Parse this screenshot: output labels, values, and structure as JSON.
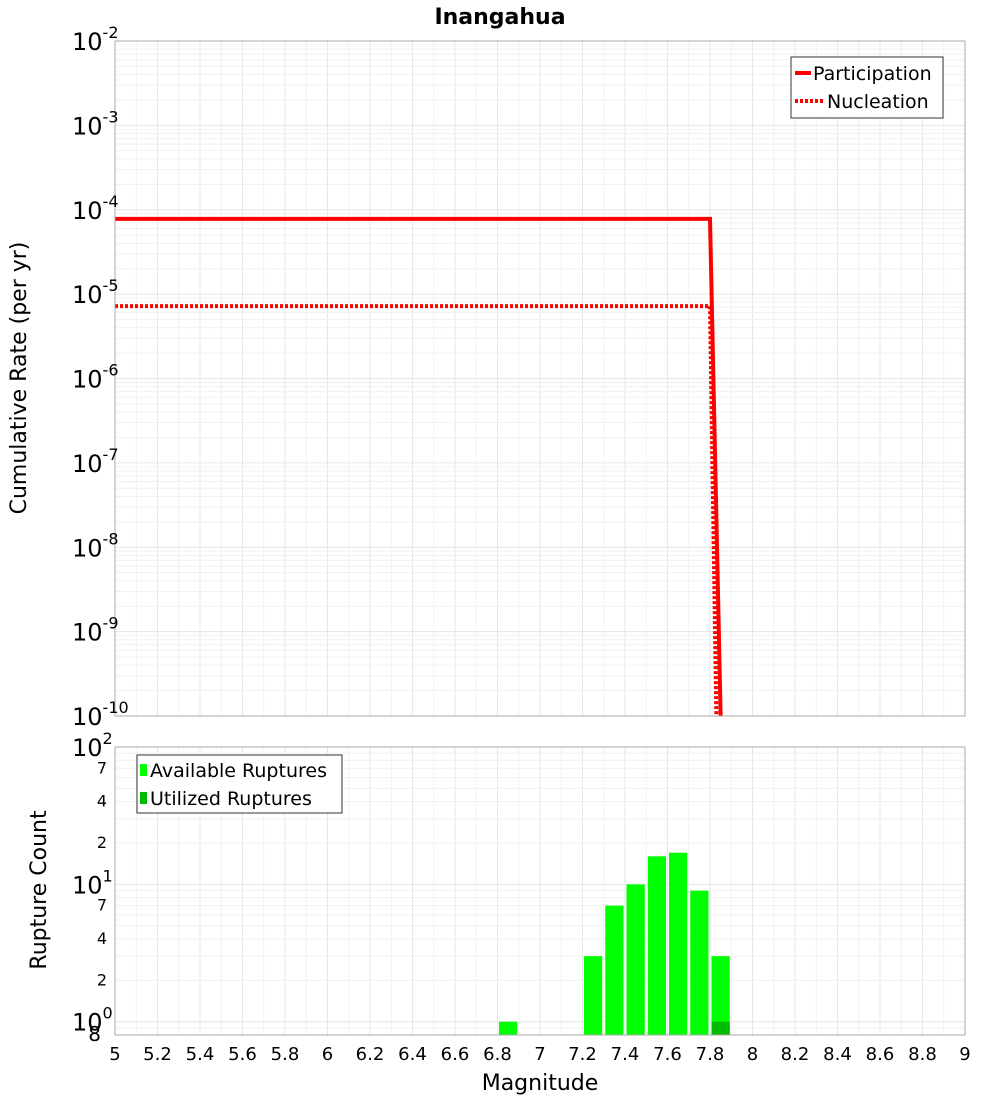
{
  "title": "Inangahua",
  "chart_data": [
    {
      "type": "line",
      "title": "Inangahua",
      "xlabel": "",
      "ylabel": "Cumulative Rate (per yr)",
      "xlim": [
        5,
        9
      ],
      "ylim": [
        1e-10,
        0.01
      ],
      "yscale": "log",
      "y_tick_exponents": [
        "-2",
        "-3",
        "-4",
        "-5",
        "-6",
        "-7",
        "-8",
        "-9",
        "-10"
      ],
      "grid": true,
      "legend_position": "top-right",
      "series": [
        {
          "name": "Participation",
          "style": "solid",
          "color": "#ff0000",
          "x": [
            5.0,
            7.8,
            7.85
          ],
          "y": [
            7.8e-05,
            7.8e-05,
            1e-10
          ]
        },
        {
          "name": "Nucleation",
          "style": "dotted",
          "color": "#ff0000",
          "x": [
            5.0,
            7.8,
            7.83
          ],
          "y": [
            7.2e-06,
            7.2e-06,
            1e-10
          ]
        }
      ]
    },
    {
      "type": "bar",
      "xlabel": "Magnitude",
      "ylabel": "Rupture Count",
      "xlim": [
        5,
        9
      ],
      "ylim": [
        0.8,
        100
      ],
      "yscale": "log",
      "y_major_labels": [
        {
          "value": 100,
          "base": "10",
          "exp": "2"
        },
        {
          "value": 10,
          "base": "10",
          "exp": "1"
        },
        {
          "value": 1,
          "base": "10",
          "exp": "0"
        }
      ],
      "y_minor_labels": [
        {
          "value": 70,
          "label": "7"
        },
        {
          "value": 40,
          "label": "4"
        },
        {
          "value": 20,
          "label": "2"
        },
        {
          "value": 7,
          "label": "7"
        },
        {
          "value": 4,
          "label": "4"
        },
        {
          "value": 2,
          "label": "2"
        },
        {
          "value": 0.8,
          "label": "8"
        }
      ],
      "x_ticks": [
        "5",
        "5.2",
        "5.4",
        "5.6",
        "5.8",
        "6",
        "6.2",
        "6.4",
        "6.6",
        "6.8",
        "7",
        "7.2",
        "7.4",
        "7.6",
        "7.8",
        "8",
        "8.2",
        "8.4",
        "8.6",
        "8.8",
        "9"
      ],
      "grid": true,
      "legend_position": "top-left",
      "bin_width": 0.1,
      "series": [
        {
          "name": "Available Ruptures",
          "color": "#00ff00",
          "x": [
            6.85,
            7.25,
            7.35,
            7.45,
            7.55,
            7.65,
            7.75,
            7.85
          ],
          "values": [
            1,
            3,
            7,
            10,
            16,
            17,
            9,
            3
          ]
        },
        {
          "name": "Utilized Ruptures",
          "color": "#00bb00",
          "x": [
            7.85
          ],
          "values": [
            1
          ]
        }
      ]
    }
  ]
}
